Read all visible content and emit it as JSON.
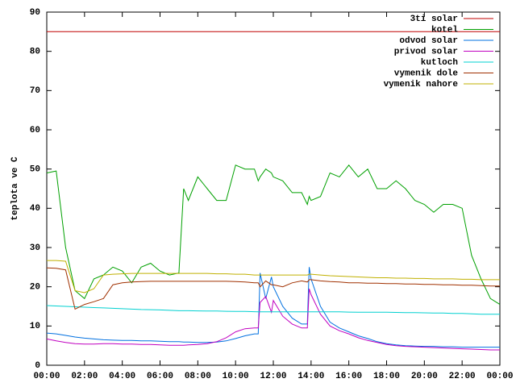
{
  "chart_data": {
    "type": "line",
    "ylabel": "teplota ve C",
    "x": [
      0,
      0.5,
      1,
      1.5,
      2,
      2.5,
      3,
      3.5,
      4,
      4.5,
      5,
      5.5,
      6,
      6.5,
      7,
      7.25,
      7.5,
      8,
      8.5,
      9,
      9.5,
      10,
      10.5,
      11,
      11.2,
      11.3,
      11.6,
      11.9,
      12,
      12.5,
      13,
      13.5,
      13.8,
      13.9,
      14,
      14.5,
      15,
      15.5,
      16,
      16.5,
      17,
      17.5,
      18,
      18.5,
      19,
      19.5,
      20,
      20.5,
      21,
      21.5,
      22,
      22.5,
      23,
      23.5,
      24
    ],
    "xlim": [
      0,
      24
    ],
    "xticks": [
      {
        "value": 0,
        "label": "00:00"
      },
      {
        "value": 2,
        "label": "02:00"
      },
      {
        "value": 4,
        "label": "04:00"
      },
      {
        "value": 6,
        "label": "06:00"
      },
      {
        "value": 8,
        "label": "08:00"
      },
      {
        "value": 10,
        "label": "10:00"
      },
      {
        "value": 12,
        "label": "12:00"
      },
      {
        "value": 14,
        "label": "14:00"
      },
      {
        "value": 16,
        "label": "16:00"
      },
      {
        "value": 18,
        "label": "18:00"
      },
      {
        "value": 20,
        "label": "20:00"
      },
      {
        "value": 22,
        "label": "22:00"
      },
      {
        "value": 24,
        "label": "00:00"
      }
    ],
    "ylim": [
      0,
      90
    ],
    "yticks": [
      0,
      10,
      20,
      30,
      40,
      50,
      60,
      70,
      80,
      90
    ],
    "legend": "top-right",
    "series": [
      {
        "name": "3ti solar",
        "color": "#c00000",
        "values": [
          85,
          85,
          85,
          85,
          85,
          85,
          85,
          85,
          85,
          85,
          85,
          85,
          85,
          85,
          85,
          85,
          85,
          85,
          85,
          85,
          85,
          85,
          85,
          85,
          85,
          85,
          85,
          85,
          85,
          85,
          85,
          85,
          85,
          85,
          85,
          85,
          85,
          85,
          85,
          85,
          85,
          85,
          85,
          85,
          85,
          85,
          85,
          85,
          85,
          85,
          85,
          85,
          85,
          85,
          85
        ]
      },
      {
        "name": "kotel",
        "color": "#00a000",
        "values": [
          49,
          49.5,
          30,
          19,
          17,
          22,
          23,
          25,
          24,
          21,
          25,
          26,
          24,
          23,
          23.5,
          45,
          42,
          48,
          45,
          42,
          42,
          51,
          50,
          50,
          47,
          48,
          50,
          49,
          48,
          47,
          44,
          44,
          41,
          43,
          42,
          43,
          49,
          48,
          51,
          48,
          50,
          45,
          45,
          47,
          45,
          42,
          41,
          39,
          41,
          41,
          40,
          28,
          22,
          17,
          15.5
        ]
      },
      {
        "name": "odvod solar",
        "color": "#0070e0",
        "values": [
          8.2,
          8,
          7.6,
          7.2,
          6.9,
          6.7,
          6.5,
          6.4,
          6.3,
          6.3,
          6.2,
          6.2,
          6.1,
          6,
          6,
          5.9,
          5.9,
          5.8,
          5.8,
          5.9,
          6.2,
          6.8,
          7.5,
          8,
          8,
          23.5,
          17,
          22.5,
          20,
          15,
          12,
          10.5,
          10.5,
          25,
          22,
          15,
          11,
          9.5,
          8.5,
          7.5,
          6.8,
          6,
          5.5,
          5.2,
          5,
          4.9,
          4.8,
          4.8,
          4.7,
          4.7,
          4.6,
          4.6,
          4.6,
          4.6,
          4.6
        ]
      },
      {
        "name": "privod solar",
        "color": "#c000c0",
        "values": [
          6.7,
          6.2,
          5.8,
          5.5,
          5.4,
          5.4,
          5.5,
          5.5,
          5.4,
          5.4,
          5.3,
          5.3,
          5.2,
          5.1,
          5.1,
          5.1,
          5.2,
          5.3,
          5.5,
          6,
          7,
          8.5,
          9.3,
          9.5,
          9.5,
          16,
          17.5,
          13.5,
          16.5,
          12.5,
          10.5,
          9.5,
          9.5,
          19.5,
          18,
          13,
          10,
          8.8,
          8,
          7,
          6.3,
          5.8,
          5.3,
          5,
          4.8,
          4.7,
          4.6,
          4.5,
          4.4,
          4.3,
          4.2,
          4.1,
          4,
          3.9,
          3.9
        ]
      },
      {
        "name": "kutloch",
        "color": "#00d0d0",
        "values": [
          15.2,
          15.1,
          15,
          14.9,
          14.8,
          14.7,
          14.6,
          14.5,
          14.4,
          14.3,
          14.2,
          14.15,
          14.1,
          14,
          13.9,
          13.9,
          13.9,
          13.85,
          13.8,
          13.8,
          13.75,
          13.7,
          13.7,
          13.65,
          13.6,
          13.6,
          13.6,
          13.6,
          13.6,
          13.6,
          13.6,
          13.6,
          13.6,
          13.6,
          13.6,
          13.6,
          13.6,
          13.6,
          13.55,
          13.5,
          13.5,
          13.5,
          13.5,
          13.45,
          13.4,
          13.4,
          13.35,
          13.3,
          13.3,
          13.2,
          13.2,
          13.1,
          13,
          13,
          13
        ]
      },
      {
        "name": "vymenik dole",
        "color": "#a03000",
        "values": [
          24.8,
          24.7,
          24.3,
          14.3,
          15.5,
          16.2,
          17,
          20.5,
          21,
          21.2,
          21.3,
          21.4,
          21.4,
          21.4,
          21.4,
          21.4,
          21.4,
          21.4,
          21.4,
          21.4,
          21.4,
          21.3,
          21.2,
          21,
          21,
          20,
          21.5,
          20.5,
          20.5,
          20,
          21,
          21.5,
          21.2,
          21.8,
          21.8,
          21.5,
          21.3,
          21.2,
          21,
          21,
          20.9,
          20.9,
          20.8,
          20.8,
          20.7,
          20.7,
          20.6,
          20.6,
          20.5,
          20.5,
          20.4,
          20.4,
          20.3,
          20.2,
          20.2
        ]
      },
      {
        "name": "vymenik nahore",
        "color": "#c0b000",
        "values": [
          26.7,
          26.7,
          26.5,
          19,
          18.5,
          19.5,
          23,
          23.2,
          23.3,
          23.4,
          23.4,
          23.4,
          23.4,
          23.4,
          23.4,
          23.4,
          23.4,
          23.4,
          23.4,
          23.3,
          23.3,
          23.2,
          23.2,
          23,
          23,
          23,
          23,
          23,
          23,
          23,
          23,
          23,
          23,
          23.2,
          23.2,
          23,
          22.8,
          22.7,
          22.6,
          22.5,
          22.4,
          22.3,
          22.3,
          22.2,
          22.2,
          22.1,
          22.1,
          22,
          22,
          22,
          21.9,
          21.9,
          21.8,
          21.8,
          21.8
        ]
      }
    ]
  }
}
